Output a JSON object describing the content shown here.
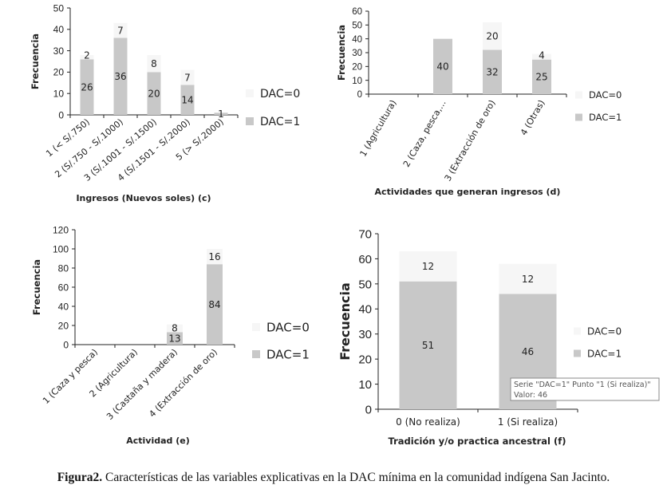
{
  "colors": {
    "dac1": "#c8c8c8",
    "dac0": "#f6f6f6",
    "axis": "#222222",
    "text": "#222222"
  },
  "chart_data": [
    {
      "type": "bar",
      "stacked": true,
      "xlabel": "Ingresos (Nuevos soles) (c)",
      "ylabel": "Frecuencia",
      "ylim": [
        0,
        50
      ],
      "yticks": [
        0,
        10,
        20,
        30,
        40,
        50
      ],
      "categories": [
        "1 (< S/.750)",
        "2 (S/.750 - S/.1000)",
        "3 (S/.1001 - S/.1500)",
        "4 (S/.1501 - S/.2000)",
        "5 (> S/.2000)"
      ],
      "series": [
        {
          "name": "DAC=1",
          "values": [
            26,
            36,
            20,
            14,
            1
          ]
        },
        {
          "name": "DAC=0",
          "values": [
            2,
            7,
            8,
            7,
            null
          ]
        }
      ],
      "legend": "right",
      "grid": false
    },
    {
      "type": "bar",
      "stacked": true,
      "xlabel": "Actividades que generan ingresos (d)",
      "ylabel": "Frecuencia",
      "ylim": [
        0,
        60
      ],
      "yticks": [
        0,
        10,
        20,
        30,
        40,
        50,
        60
      ],
      "categories": [
        "1 (Agricultura)",
        "2 (Caza, pesca,...",
        "3 (Extracción de oro)",
        "4 (Otras)"
      ],
      "series": [
        {
          "name": "DAC=1",
          "values": [
            null,
            40,
            32,
            25
          ]
        },
        {
          "name": "DAC=0",
          "values": [
            null,
            null,
            20,
            4
          ]
        }
      ],
      "legend": "right",
      "grid": false
    },
    {
      "type": "bar",
      "stacked": true,
      "xlabel": "Actividad (e)",
      "ylabel": "Frecuencia",
      "ylim": [
        0,
        120
      ],
      "yticks": [
        0,
        20,
        40,
        60,
        80,
        100,
        120
      ],
      "categories": [
        "1 (Caza y pesca)",
        "2 (Agricultura)",
        "3 (Castaña y madera)",
        "4 (Extracción de oro)"
      ],
      "series": [
        {
          "name": "DAC=1",
          "values": [
            null,
            null,
            13,
            84
          ]
        },
        {
          "name": "DAC=0",
          "values": [
            null,
            null,
            8,
            16
          ]
        }
      ],
      "legend": "right",
      "grid": false
    },
    {
      "type": "bar",
      "stacked": true,
      "xlabel": "Tradición y/o practica ancestral (f)",
      "ylabel": "Frecuencia",
      "ylim": [
        0,
        70
      ],
      "yticks": [
        0,
        10,
        20,
        30,
        40,
        50,
        60,
        70
      ],
      "categories": [
        "0 (No realiza)",
        "1 (Si realiza)"
      ],
      "series": [
        {
          "name": "DAC=1",
          "values": [
            51,
            46
          ]
        },
        {
          "name": "DAC=0",
          "values": [
            12,
            12
          ]
        }
      ],
      "legend": "right",
      "grid": false,
      "tooltip": {
        "line1": "Serie \"DAC=1\" Punto \"1 (Si realiza)\"",
        "line2": "Valor: 46"
      }
    }
  ],
  "caption": {
    "label": "Figura2.",
    "text": " Características de las variables explicativas en la DAC mínima en la comunidad indígena San Jacinto."
  }
}
